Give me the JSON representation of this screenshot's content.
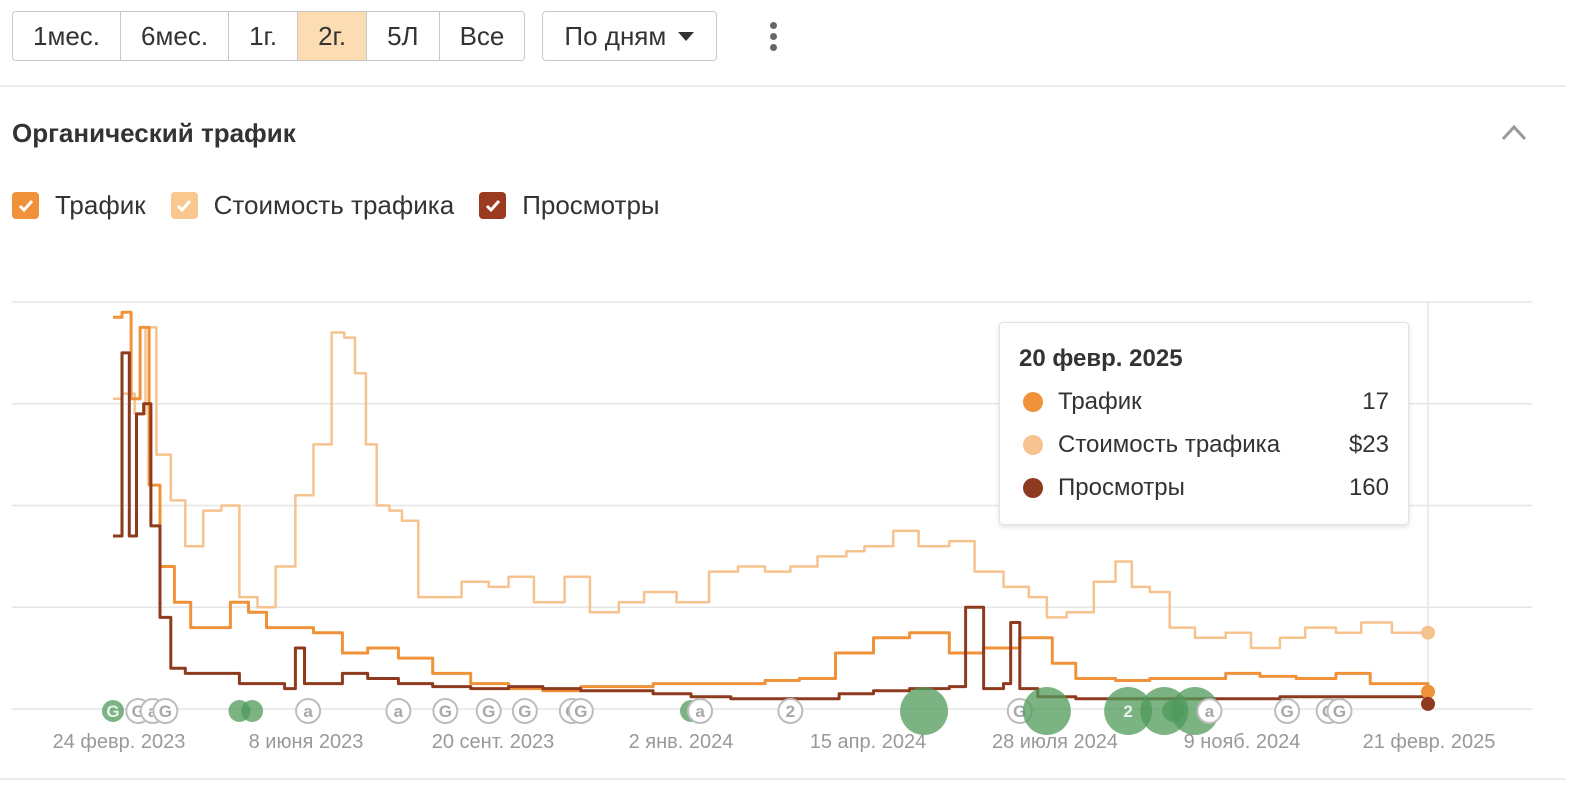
{
  "toolbar": {
    "periods": [
      {
        "label": "1мес.",
        "active": false
      },
      {
        "label": "6мес.",
        "active": false
      },
      {
        "label": "1г.",
        "active": false
      },
      {
        "label": "2г.",
        "active": true
      },
      {
        "label": "5Л",
        "active": false
      },
      {
        "label": "Все",
        "active": false
      }
    ],
    "granularity": "По дням"
  },
  "section": {
    "title": "Органический трафик"
  },
  "legend": [
    {
      "label": "Трафик",
      "color": "#f0923a",
      "checked": true
    },
    {
      "label": "Стоимость трафика",
      "color": "#f9c88e",
      "checked": true
    },
    {
      "label": "Просмотры",
      "color": "#9a3a1e",
      "checked": true
    }
  ],
  "tooltip": {
    "date": "20 февр. 2025",
    "rows": [
      {
        "label": "Трафик",
        "value": "17",
        "color": "#f0923a"
      },
      {
        "label": "Стоимость трафика",
        "value": "$23",
        "color": "#f6c38f"
      },
      {
        "label": "Просмотры",
        "value": "160",
        "color": "#8e3a1e"
      }
    ]
  },
  "chart_data": {
    "type": "line",
    "x_tick_labels": [
      "24 февр. 2023",
      "8 июня 2023",
      "20 сент. 2023",
      "2 янв. 2024",
      "15 апр. 2024",
      "28 июля 2024",
      "9 нояб. 2024",
      "21 февр. 2025"
    ],
    "x_range": [
      "2023-02-24",
      "2025-02-21"
    ],
    "y_range": [
      0,
      4
    ],
    "y_gridlines": 4,
    "grid": true,
    "legend_position": "top-left",
    "series": [
      {
        "name": "Стоимость трафика",
        "color": "#f6c38f",
        "x": [
          "2023-02-24",
          "2023-03-01",
          "2023-03-08",
          "2023-03-14",
          "2023-03-20",
          "2023-03-28",
          "2023-04-05",
          "2023-04-15",
          "2023-04-25",
          "2023-05-05",
          "2023-05-15",
          "2023-05-25",
          "2023-06-05",
          "2023-06-15",
          "2023-06-25",
          "2023-07-02",
          "2023-07-08",
          "2023-07-14",
          "2023-07-20",
          "2023-07-27",
          "2023-08-03",
          "2023-08-12",
          "2023-08-22",
          "2023-08-31",
          "2023-09-05",
          "2023-09-20",
          "2023-10-01",
          "2023-10-15",
          "2023-11-01",
          "2023-11-15",
          "2023-12-01",
          "2023-12-15",
          "2024-01-02",
          "2024-01-20",
          "2024-02-05",
          "2024-02-20",
          "2024-03-05",
          "2024-03-20",
          "2024-04-05",
          "2024-04-15",
          "2024-05-01",
          "2024-05-15",
          "2024-06-01",
          "2024-06-15",
          "2024-07-01",
          "2024-07-15",
          "2024-07-25",
          "2024-08-05",
          "2024-08-20",
          "2024-09-01",
          "2024-09-10",
          "2024-09-20",
          "2024-10-01",
          "2024-10-15",
          "2024-11-01",
          "2024-11-15",
          "2024-12-01",
          "2024-12-15",
          "2025-01-01",
          "2025-01-15",
          "2025-02-01",
          "2025-02-21"
        ],
        "values": [
          3.05,
          3.1,
          2.9,
          3.75,
          2.5,
          2.05,
          1.6,
          1.95,
          2.0,
          1.1,
          1.0,
          1.4,
          2.1,
          2.6,
          3.7,
          3.65,
          3.3,
          2.6,
          2.0,
          1.95,
          1.85,
          1.1,
          1.1,
          1.1,
          1.25,
          1.2,
          1.3,
          1.05,
          1.3,
          0.95,
          1.05,
          1.15,
          1.05,
          1.35,
          1.4,
          1.35,
          1.4,
          1.5,
          1.55,
          1.6,
          1.75,
          1.6,
          1.65,
          1.35,
          1.2,
          1.1,
          0.9,
          0.95,
          1.25,
          1.45,
          1.2,
          1.15,
          0.8,
          0.7,
          0.75,
          0.6,
          0.7,
          0.8,
          0.75,
          0.85,
          0.75,
          0.75
        ]
      },
      {
        "name": "Трафик",
        "color": "#f0923a",
        "x": [
          "2023-02-24",
          "2023-03-01",
          "2023-03-06",
          "2023-03-11",
          "2023-03-16",
          "2023-03-22",
          "2023-03-30",
          "2023-04-08",
          "2023-04-18",
          "2023-04-30",
          "2023-05-10",
          "2023-05-20",
          "2023-06-01",
          "2023-06-15",
          "2023-07-01",
          "2023-07-15",
          "2023-08-01",
          "2023-08-20",
          "2023-09-10",
          "2023-10-01",
          "2023-10-20",
          "2023-11-10",
          "2023-12-01",
          "2023-12-20",
          "2024-01-10",
          "2024-02-01",
          "2024-02-20",
          "2024-03-10",
          "2024-03-30",
          "2024-04-20",
          "2024-05-10",
          "2024-06-01",
          "2024-06-20",
          "2024-07-10",
          "2024-07-28",
          "2024-08-10",
          "2024-09-01",
          "2024-09-20",
          "2024-10-10",
          "2024-11-01",
          "2024-11-20",
          "2024-12-10",
          "2025-01-01",
          "2025-01-20",
          "2025-02-21"
        ],
        "values": [
          3.85,
          3.9,
          3.05,
          3.75,
          2.2,
          1.4,
          1.05,
          0.8,
          0.8,
          1.05,
          0.95,
          0.8,
          0.8,
          0.75,
          0.55,
          0.6,
          0.5,
          0.35,
          0.25,
          0.2,
          0.18,
          0.22,
          0.22,
          0.25,
          0.25,
          0.25,
          0.28,
          0.3,
          0.55,
          0.7,
          0.75,
          0.55,
          0.6,
          0.7,
          0.45,
          0.3,
          0.28,
          0.3,
          0.3,
          0.35,
          0.32,
          0.3,
          0.35,
          0.25,
          0.17
        ]
      },
      {
        "name": "Просмотры",
        "color": "#8e3a1e",
        "x": [
          "2023-02-24",
          "2023-03-01",
          "2023-03-05",
          "2023-03-09",
          "2023-03-13",
          "2023-03-17",
          "2023-03-22",
          "2023-03-28",
          "2023-04-05",
          "2023-04-15",
          "2023-04-25",
          "2023-05-05",
          "2023-05-15",
          "2023-05-30",
          "2023-06-05",
          "2023-06-10",
          "2023-06-20",
          "2023-07-01",
          "2023-07-15",
          "2023-08-01",
          "2023-08-20",
          "2023-09-10",
          "2023-10-01",
          "2023-10-20",
          "2023-11-10",
          "2023-12-01",
          "2023-12-20",
          "2024-01-10",
          "2024-02-01",
          "2024-03-01",
          "2024-04-01",
          "2024-04-20",
          "2024-05-10",
          "2024-06-01",
          "2024-06-10",
          "2024-06-20",
          "2024-07-01",
          "2024-07-05",
          "2024-07-10",
          "2024-07-20",
          "2024-08-10",
          "2024-09-01",
          "2024-10-01",
          "2024-11-01",
          "2024-12-01",
          "2025-01-01",
          "2025-02-21"
        ],
        "values": [
          1.7,
          3.5,
          1.7,
          2.9,
          3.0,
          1.8,
          0.9,
          0.4,
          0.35,
          0.35,
          0.35,
          0.25,
          0.25,
          0.2,
          0.6,
          0.25,
          0.25,
          0.35,
          0.3,
          0.25,
          0.22,
          0.2,
          0.22,
          0.2,
          0.18,
          0.18,
          0.15,
          0.12,
          0.1,
          0.1,
          0.15,
          0.18,
          0.2,
          0.22,
          1.0,
          0.2,
          0.25,
          0.85,
          0.2,
          0.12,
          0.1,
          0.1,
          0.1,
          0.1,
          0.12,
          0.12,
          0.05
        ]
      }
    ]
  },
  "annotations": [
    {
      "letter": "G",
      "date": "2023-02-24",
      "filled": true
    },
    {
      "letter": "G",
      "date": "2023-03-10"
    },
    {
      "letter": "a",
      "date": "2023-03-18"
    },
    {
      "letter": "G",
      "date": "2023-03-25"
    },
    {
      "letter": "",
      "date": "2023-05-05",
      "filled": true
    },
    {
      "letter": "",
      "date": "2023-05-12",
      "filled": true
    },
    {
      "letter": "a",
      "date": "2023-06-12"
    },
    {
      "letter": "a",
      "date": "2023-08-01"
    },
    {
      "letter": "G",
      "date": "2023-08-27"
    },
    {
      "letter": "G",
      "date": "2023-09-20"
    },
    {
      "letter": "G",
      "date": "2023-10-10"
    },
    {
      "letter": "G",
      "date": "2023-11-05"
    },
    {
      "letter": "G",
      "date": "2023-11-10"
    },
    {
      "letter": "",
      "date": "2024-01-10",
      "filled": true
    },
    {
      "letter": "a",
      "date": "2024-01-15"
    },
    {
      "letter": "2",
      "date": "2024-03-05"
    },
    {
      "letter": "",
      "date": "2024-05-18",
      "filled": true,
      "size": "large"
    },
    {
      "letter": "G",
      "date": "2024-07-10"
    },
    {
      "letter": "",
      "date": "2024-07-25",
      "filled": true,
      "size": "large"
    },
    {
      "letter": "2",
      "date": "2024-09-08",
      "filled": true,
      "size": "large"
    },
    {
      "letter": "",
      "date": "2024-09-28",
      "filled": true,
      "size": "large"
    },
    {
      "letter": "",
      "date": "2024-10-03",
      "filled": true
    },
    {
      "letter": "",
      "date": "2024-10-15",
      "filled": true,
      "size": "large"
    },
    {
      "letter": "a",
      "date": "2024-10-23"
    },
    {
      "letter": "G",
      "date": "2024-12-05"
    },
    {
      "letter": "G",
      "date": "2024-12-28"
    },
    {
      "letter": "G",
      "date": "2025-01-03"
    }
  ]
}
